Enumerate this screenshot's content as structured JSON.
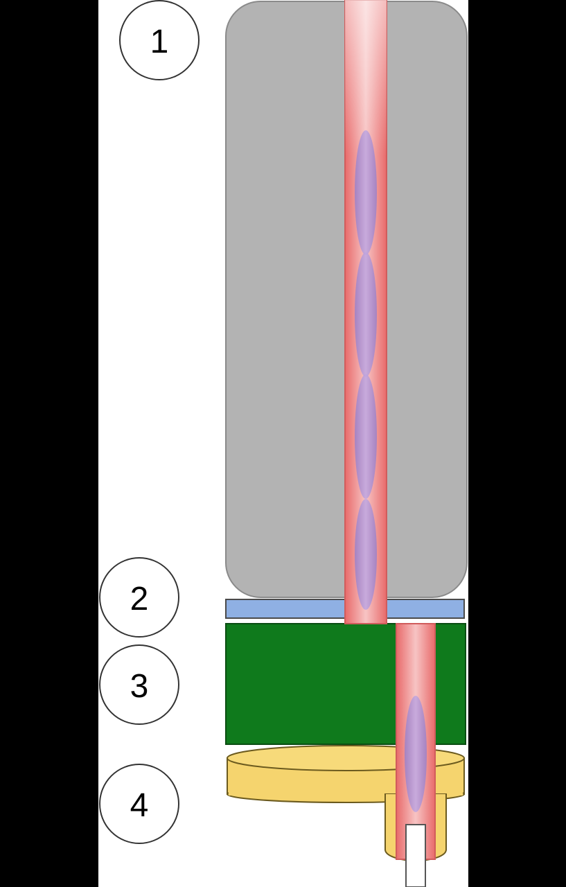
{
  "labels": {
    "callout_1": "1",
    "callout_2": "2",
    "callout_3": "3",
    "callout_4": "4"
  },
  "colors": {
    "background": "#000000",
    "panel": "#ffffff",
    "cylinder": "#b3b3b3",
    "disc": "#8fb0e3",
    "block": "#0f7a1c",
    "base": "#f5d46e",
    "channel": "#f09090",
    "channel_highlight": "#f7c4c4",
    "droplet": "#b08fd0",
    "outlet": "#ffffff"
  }
}
